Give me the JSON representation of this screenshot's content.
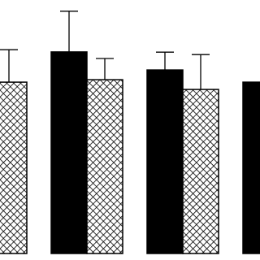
{
  "chart_data": {
    "type": "bar",
    "categories": [
      null,
      null,
      null,
      null
    ],
    "series": [
      {
        "color": "#000000",
        "pattern": "solid",
        "values": [
          null,
          82.7,
          75.3,
          70.3
        ],
        "errors": [
          null,
          16.7,
          7.3,
          null
        ]
      },
      {
        "color": "#000000",
        "pattern": "crosshatch",
        "values": [
          70.3,
          71.3,
          67.3,
          null
        ],
        "errors": [
          13.3,
          8.7,
          14.3,
          null
        ]
      }
    ],
    "ylim": [
      0,
      104
    ]
  }
}
